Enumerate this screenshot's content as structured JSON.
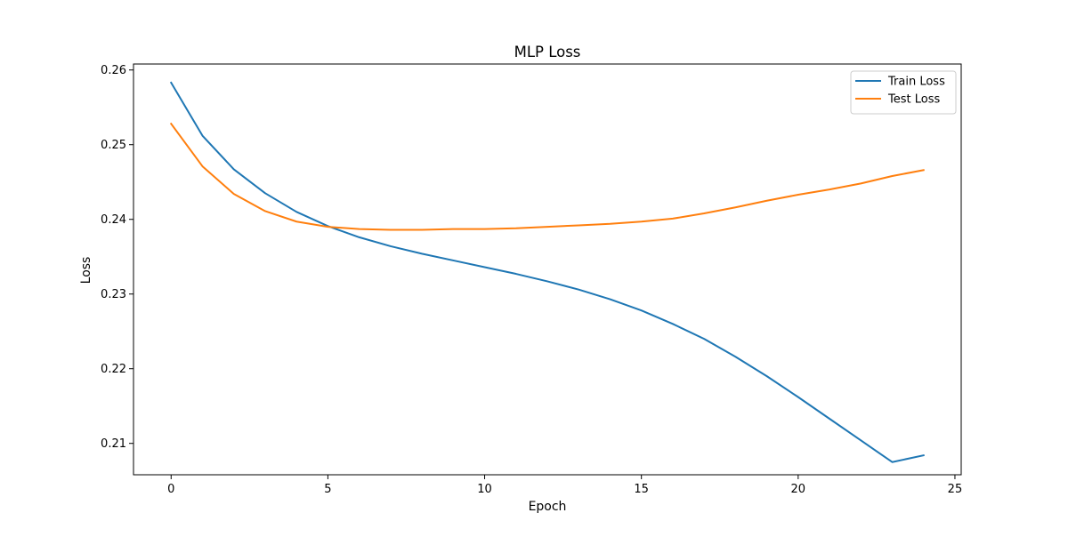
{
  "chart_data": {
    "type": "line",
    "title": "MLP Loss",
    "xlabel": "Epoch",
    "ylabel": "Loss",
    "xlim": [
      -1.2,
      25.2
    ],
    "ylim": [
      0.2058,
      0.2608
    ],
    "xticks": [
      0,
      5,
      10,
      15,
      20,
      25
    ],
    "xtick_labels": [
      "0",
      "5",
      "10",
      "15",
      "20",
      "25"
    ],
    "yticks": [
      0.21,
      0.22,
      0.23,
      0.24,
      0.25,
      0.26
    ],
    "ytick_labels": [
      "0.21",
      "0.22",
      "0.23",
      "0.24",
      "0.25",
      "0.26"
    ],
    "grid": false,
    "legend_position": "top-right",
    "x": [
      0,
      1,
      2,
      3,
      4,
      5,
      6,
      7,
      8,
      9,
      10,
      11,
      12,
      13,
      14,
      15,
      16,
      17,
      18,
      19,
      20,
      21,
      22,
      23,
      24
    ],
    "series": [
      {
        "name": "Train Loss",
        "color": "#1f77b4",
        "values": [
          0.2583,
          0.2512,
          0.2467,
          0.2435,
          0.241,
          0.2391,
          0.2376,
          0.2364,
          0.2354,
          0.2345,
          0.2336,
          0.2327,
          0.2317,
          0.2306,
          0.2293,
          0.2278,
          0.226,
          0.224,
          0.2216,
          0.219,
          0.2162,
          0.2133,
          0.2104,
          0.2075,
          0.2084
        ]
      },
      {
        "name": "Test Loss",
        "color": "#ff7f0e",
        "values": [
          0.2528,
          0.2471,
          0.2434,
          0.2411,
          0.2397,
          0.239,
          0.2387,
          0.2386,
          0.2386,
          0.2387,
          0.2387,
          0.2388,
          0.239,
          0.2392,
          0.2394,
          0.2397,
          0.2401,
          0.2408,
          0.2416,
          0.2425,
          0.2433,
          0.244,
          0.2448,
          0.2458,
          0.2466
        ]
      }
    ]
  }
}
